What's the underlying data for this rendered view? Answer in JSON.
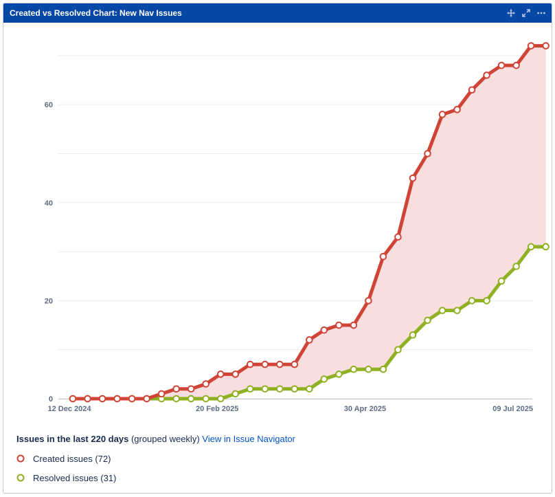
{
  "gadget": {
    "title": "Created vs Resolved Chart: New Nav Issues",
    "icons": [
      "move-icon",
      "expand-icon",
      "more-icon"
    ]
  },
  "summary": {
    "prefix": "Issues in the last 220 days",
    "grouping": "(grouped weekly)",
    "link": "View in Issue Navigator"
  },
  "legend": {
    "created": "Created issues (72)",
    "resolved": "Resolved issues (31)"
  },
  "colors": {
    "created": "#d04437",
    "resolved": "#8eb021",
    "area": "#f8dede",
    "header": "#0747a6"
  },
  "chart_data": {
    "type": "line",
    "xlabels": [
      "12 Dec 2024",
      "20 Feb 2025",
      "30 Apr 2025",
      "09 Jul 2025"
    ],
    "yticks": [
      0,
      20,
      40,
      60
    ],
    "ylim": [
      0,
      80
    ],
    "series": [
      {
        "name": "Created issues (72)",
        "values": [
          0,
          0,
          0,
          0,
          0,
          0,
          1,
          2,
          2,
          3,
          5,
          5,
          7,
          7,
          7,
          7,
          12,
          14,
          15,
          15,
          20,
          29,
          33,
          45,
          50,
          58,
          59,
          63,
          66,
          68,
          68,
          72,
          72
        ]
      },
      {
        "name": "Resolved issues (31)",
        "values": [
          0,
          0,
          0,
          0,
          0,
          0,
          0,
          0,
          0,
          0,
          0,
          1,
          2,
          2,
          2,
          2,
          2,
          4,
          5,
          6,
          6,
          6,
          10,
          13,
          16,
          18,
          18,
          20,
          20,
          24,
          27,
          31,
          31
        ]
      }
    ]
  }
}
